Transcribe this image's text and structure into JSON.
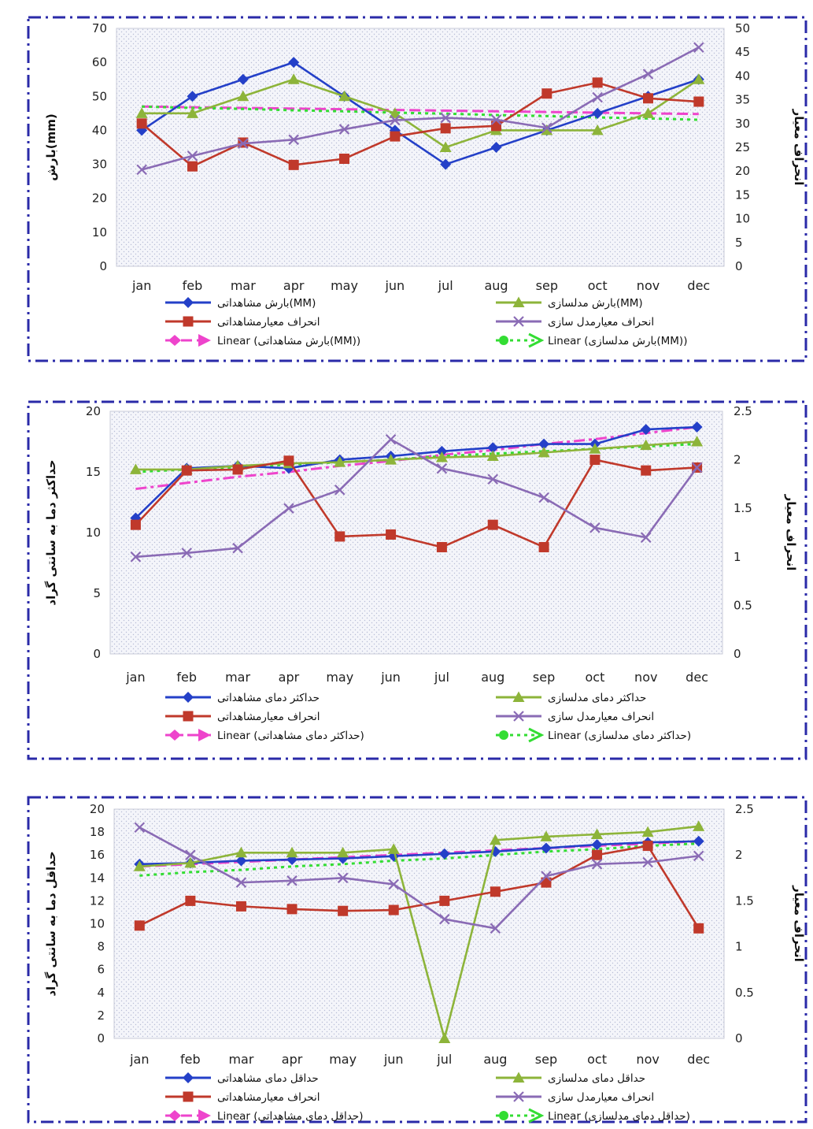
{
  "colors": {
    "obs": "#2440c8",
    "sim": "#8db43a",
    "std_obs": "#c0392b",
    "std_sim": "#8a6bb5",
    "trend_obs": "#ee44cc",
    "trend_sim": "#33dd33",
    "frame": "#2a2aa8",
    "plot_bg": "#eef0f6"
  },
  "chart_data": [
    {
      "type": "line",
      "categories": [
        "jan",
        "feb",
        "mar",
        "apr",
        "may",
        "jun",
        "jul",
        "aug",
        "sep",
        "oct",
        "nov",
        "dec"
      ],
      "ylabel": "بارش(mm)",
      "y2label": "انحراف معیار",
      "ylim": [
        0,
        70
      ],
      "y2lim": [
        0,
        50
      ],
      "yticks": [
        "0",
        "10",
        "20",
        "30",
        "40",
        "50",
        "60",
        "70"
      ],
      "y2ticks": [
        "0",
        "5",
        "10",
        "15",
        "20",
        "25",
        "30",
        "35",
        "40",
        "45",
        "50"
      ],
      "series": [
        {
          "name": "بارش مشاهداتی(MM)",
          "axis": "left",
          "role": "obs",
          "marker": "diamond",
          "values": [
            40,
            50,
            55,
            60,
            50,
            40,
            30,
            35,
            40,
            45,
            50,
            55
          ]
        },
        {
          "name": "بارش مدلسازی(MM)",
          "axis": "left",
          "role": "sim",
          "marker": "triangle",
          "values": [
            45,
            45,
            50,
            55,
            50,
            45,
            35,
            40,
            40,
            40,
            45,
            55
          ]
        },
        {
          "name": "انحراف معیارمشاهداتی",
          "axis": "right",
          "role": "std_obs",
          "marker": "square",
          "values": [
            30,
            21,
            26,
            21.3,
            22.6,
            27.3,
            29,
            29.5,
            36.3,
            38.6,
            35.3,
            34.6
          ]
        },
        {
          "name": "انحراف معیارمدل سازی",
          "axis": "right",
          "role": "std_sim",
          "marker": "x",
          "values": [
            20.3,
            23.2,
            25.8,
            26.6,
            28.8,
            30.7,
            31.2,
            30.8,
            29.1,
            35.5,
            40.4,
            46
          ]
        },
        {
          "name": "Linear (بارش مشاهداتی(MM))",
          "axis": "left",
          "role": "trend_obs",
          "marker": "none",
          "dash": "14 6",
          "values": [
            47,
            46.8,
            46.6,
            46.4,
            46.2,
            46.0,
            45.8,
            45.6,
            45.4,
            45.2,
            45.0,
            44.8
          ]
        },
        {
          "name": "Linear (بارش مدلسازی(MM))",
          "axis": "left",
          "role": "trend_sim",
          "marker": "none",
          "dash": "4 5",
          "values": [
            47,
            46.6,
            46.3,
            45.9,
            45.6,
            45.2,
            44.9,
            44.5,
            44.2,
            43.8,
            43.5,
            43.1
          ]
        }
      ]
    },
    {
      "type": "line",
      "categories": [
        "jan",
        "feb",
        "mar",
        "apr",
        "may",
        "jun",
        "jul",
        "aug",
        "sep",
        "oct",
        "nov",
        "dec"
      ],
      "ylabel": "حداکثر دما به سانتی گراد",
      "y2label": "انحراف معیار",
      "ylim": [
        0,
        20
      ],
      "y2lim": [
        0,
        2.5
      ],
      "yticks": [
        "0",
        "5",
        "10",
        "15",
        "20"
      ],
      "y2ticks": [
        "0",
        "0.5",
        "1",
        "1.5",
        "2",
        "2.5"
      ],
      "series": [
        {
          "name": "حداکثر دمای مشاهداتی",
          "axis": "left",
          "role": "obs",
          "marker": "diamond",
          "values": [
            11.2,
            15.3,
            15.5,
            15.3,
            16,
            16.3,
            16.7,
            17,
            17.3,
            17.3,
            18.5,
            18.7
          ]
        },
        {
          "name": "حداکثر دمای مدلسازی",
          "axis": "left",
          "role": "sim",
          "marker": "triangle",
          "values": [
            15.2,
            15.2,
            15.5,
            15.7,
            15.8,
            16,
            16.2,
            16.3,
            16.6,
            16.9,
            17.2,
            17.5
          ]
        },
        {
          "name": "انحراف معیارمشاهداتی",
          "axis": "right",
          "role": "std_obs",
          "marker": "square",
          "values": [
            1.33,
            1.89,
            1.9,
            1.99,
            1.21,
            1.23,
            1.1,
            1.33,
            1.1,
            2,
            1.89,
            1.92
          ]
        },
        {
          "name": "انحراف معیارمدل سازی",
          "axis": "right",
          "role": "std_sim",
          "marker": "x",
          "values": [
            1,
            1.04,
            1.09,
            1.5,
            1.69,
            2.21,
            1.91,
            1.8,
            1.61,
            1.3,
            1.2,
            1.92
          ]
        },
        {
          "name": "Linear (حداکثر دمای مشاهداتی)",
          "axis": "left",
          "role": "trend_obs",
          "marker": "none",
          "dash": "14 5 4 5",
          "values": [
            13.6,
            14.1,
            14.6,
            15.0,
            15.5,
            15.9,
            16.4,
            16.8,
            17.3,
            17.7,
            18.2,
            18.7
          ]
        },
        {
          "name": "Linear (حداکثر دمای مدلسازی)",
          "axis": "left",
          "role": "trend_sim",
          "marker": "none",
          "dash": "4 5",
          "values": [
            15.0,
            15.2,
            15.4,
            15.6,
            15.8,
            16.0,
            16.3,
            16.5,
            16.7,
            16.9,
            17.1,
            17.3
          ]
        }
      ]
    },
    {
      "type": "line",
      "categories": [
        "jan",
        "feb",
        "mar",
        "apr",
        "may",
        "jun",
        "jul",
        "aug",
        "sep",
        "oct",
        "nov",
        "dec"
      ],
      "ylabel": "حداقل دما به سانتی گراد",
      "y2label": "انحراف معیار",
      "ylim": [
        0,
        20
      ],
      "y2lim": [
        0,
        2.5
      ],
      "yticks": [
        "0",
        "2",
        "4",
        "6",
        "8",
        "10",
        "12",
        "14",
        "16",
        "18",
        "20"
      ],
      "y2ticks": [
        "0",
        "0.5",
        "1",
        "1.5",
        "2",
        "2.5"
      ],
      "series": [
        {
          "name": "حداقل دمای مشاهداتی",
          "axis": "left",
          "role": "obs",
          "marker": "diamond",
          "values": [
            15.2,
            15.3,
            15.5,
            15.6,
            15.7,
            15.9,
            16.1,
            16.3,
            16.6,
            16.9,
            17.1,
            17.2
          ]
        },
        {
          "name": "حداقل دمای مدلسازی",
          "axis": "left",
          "role": "sim",
          "marker": "triangle",
          "values": [
            15,
            15.3,
            16.2,
            16.2,
            16.2,
            16.5,
            0,
            17.3,
            17.6,
            17.8,
            18,
            18.5
          ]
        },
        {
          "name": "انحراف معیارمشاهداتی",
          "axis": "right",
          "role": "std_obs",
          "marker": "square",
          "values": [
            1.23,
            1.5,
            1.44,
            1.41,
            1.39,
            1.4,
            1.5,
            1.6,
            1.7,
            2,
            2.1,
            1.2
          ]
        },
        {
          "name": "انحراف معیارمدل سازی",
          "axis": "right",
          "role": "std_sim",
          "marker": "x",
          "values": [
            2.3,
            2,
            1.7,
            1.72,
            1.75,
            1.68,
            1.3,
            1.2,
            1.77,
            1.9,
            1.92,
            1.99
          ]
        },
        {
          "name": "Linear (حداقل دمای مشاهداتی)",
          "axis": "left",
          "role": "trend_obs",
          "marker": "none",
          "dash": "14 6",
          "values": [
            15.0,
            15.2,
            15.4,
            15.6,
            15.8,
            16.0,
            16.2,
            16.4,
            16.6,
            16.8,
            17.0,
            17.2
          ]
        },
        {
          "name": "Linear (حداقل دمای مدلسازی)",
          "axis": "left",
          "role": "trend_sim",
          "marker": "none",
          "dash": "4 5",
          "values": [
            14.2,
            14.5,
            14.7,
            15.0,
            15.2,
            15.5,
            15.7,
            16.0,
            16.3,
            16.5,
            16.8,
            17.0
          ]
        }
      ]
    }
  ]
}
